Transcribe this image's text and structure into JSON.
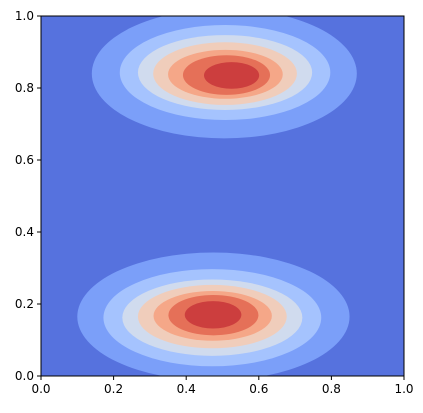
{
  "chart_data": {
    "type": "contourf",
    "xlim": [
      0,
      1
    ],
    "ylim": [
      0,
      1
    ],
    "xticks": [
      {
        "value": 0,
        "label": "0.0"
      },
      0.2,
      0.4,
      0.6,
      0.8,
      {
        "value": 1,
        "label": "1.0"
      }
    ],
    "yticks": [
      {
        "value": 0,
        "label": "0.0"
      },
      0.2,
      0.4,
      0.6,
      0.8,
      {
        "value": 1,
        "label": "1.0"
      }
    ],
    "background_color": "#5672de",
    "levels": [
      {
        "color": "#7b9ff9",
        "ellipses": [
          [
            0.505,
            0.84,
            0.365,
            0.18
          ],
          [
            0.475,
            0.165,
            0.375,
            0.178
          ]
        ]
      },
      {
        "color": "#a5c3fe",
        "ellipses": [
          [
            0.507,
            0.843,
            0.29,
            0.132
          ],
          [
            0.472,
            0.162,
            0.3,
            0.135
          ]
        ]
      },
      {
        "color": "#d0dbee",
        "ellipses": [
          [
            0.507,
            0.843,
            0.24,
            0.104
          ],
          [
            0.472,
            0.162,
            0.248,
            0.106
          ]
        ]
      },
      {
        "color": "#f0cdbb",
        "ellipses": [
          [
            0.507,
            0.84,
            0.198,
            0.087
          ],
          [
            0.472,
            0.165,
            0.205,
            0.088
          ]
        ]
      },
      {
        "color": "#f5a788",
        "ellipses": [
          [
            0.508,
            0.838,
            0.158,
            0.068
          ],
          [
            0.473,
            0.167,
            0.163,
            0.069
          ]
        ]
      },
      {
        "color": "#e57058",
        "ellipses": [
          [
            0.511,
            0.836,
            0.12,
            0.055
          ],
          [
            0.475,
            0.169,
            0.124,
            0.056
          ]
        ]
      },
      {
        "color": "#cc3e3e",
        "ellipses": [
          [
            0.525,
            0.835,
            0.076,
            0.037
          ],
          [
            0.474,
            0.17,
            0.078,
            0.038
          ]
        ]
      }
    ]
  }
}
